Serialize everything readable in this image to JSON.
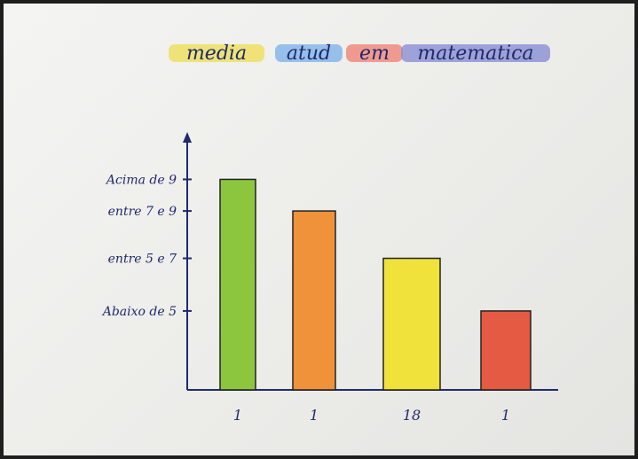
{
  "chart_data": {
    "type": "bar",
    "title": {
      "words": [
        "media",
        "atud",
        "em",
        "matematica"
      ],
      "highlight_colors": [
        "#efe05a",
        "#7fb4ea",
        "#f08478",
        "#8a8fd4"
      ]
    },
    "categories": [
      "Acima de 9",
      "entre 7 e 9",
      "entre 5 e 7",
      "Abaixo de 5"
    ],
    "x_tick_labels": [
      "1",
      "1",
      "18",
      "1"
    ],
    "values": [
      4,
      3.4,
      2.5,
      1.5
    ],
    "y_tick_labels": [
      "Acima de 9",
      "entre 7 e 9",
      "entre 5 e 7",
      "Abaixo de 5"
    ],
    "y_tick_values": [
      4,
      3.4,
      2.5,
      1.5
    ],
    "ylim": [
      0,
      4.9
    ],
    "bar_colors": [
      "#8cc63e",
      "#f0923a",
      "#f0e23a",
      "#e45a42"
    ],
    "grid": false
  }
}
